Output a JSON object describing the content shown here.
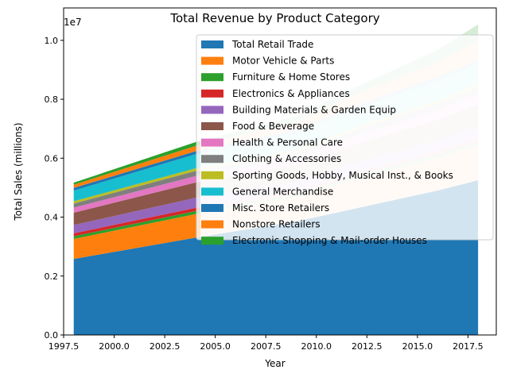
{
  "chart_data": {
    "type": "area",
    "stacked": true,
    "title": "Total Revenue by Product Category",
    "xlabel": "Year",
    "ylabel": "Total Sales (millions)",
    "y_scale_label": "1e7",
    "xlim": [
      1997.5,
      2018.9
    ],
    "ylim": [
      0,
      11100000
    ],
    "x_ticks": [
      1997.5,
      2000.0,
      2002.5,
      2005.0,
      2007.5,
      2010.0,
      2012.5,
      2015.0,
      2017.5
    ],
    "x_tick_labels": [
      "1997.5",
      "2000.0",
      "2002.5",
      "2005.0",
      "2007.5",
      "2010.0",
      "2012.5",
      "2015.0",
      "2017.5"
    ],
    "y_ticks": [
      0,
      2000000,
      4000000,
      6000000,
      8000000,
      10000000
    ],
    "y_tick_labels": [
      "0.0",
      "0.2",
      "0.4",
      "0.6",
      "0.8",
      "1.0"
    ],
    "legend_position": "upper right",
    "grid": false,
    "x": [
      1998,
      2004,
      2009,
      2012,
      2016,
      2018
    ],
    "series": [
      {
        "name": "Total Retail Trade",
        "color": "#1f77b4",
        "values": [
          2580000,
          3300000,
          3850000,
          4300000,
          4900000,
          5250000
        ]
      },
      {
        "name": "Motor Vehicle & Parts",
        "color": "#ff7f0e",
        "values": [
          680000,
          800000,
          820000,
          1000000,
          1100000,
          1200000
        ]
      },
      {
        "name": "Furniture & Home Stores",
        "color": "#2ca02c",
        "values": [
          90000,
          100000,
          100000,
          110000,
          120000,
          120000
        ]
      },
      {
        "name": "Electronics & Appliances",
        "color": "#d62728",
        "values": [
          100000,
          110000,
          100000,
          110000,
          110000,
          110000
        ]
      },
      {
        "name": "Building Materials & Garden Equip",
        "color": "#9467bd",
        "values": [
          280000,
          340000,
          320000,
          340000,
          370000,
          400000
        ]
      },
      {
        "name": "Food & Beverage",
        "color": "#8c564b",
        "values": [
          420000,
          520000,
          560000,
          620000,
          700000,
          740000
        ]
      },
      {
        "name": "Health & Personal Care",
        "color": "#e377c2",
        "values": [
          170000,
          220000,
          260000,
          290000,
          330000,
          350000
        ]
      },
      {
        "name": "Clothing & Accessories",
        "color": "#7f7f7f",
        "values": [
          140000,
          170000,
          180000,
          210000,
          240000,
          250000
        ]
      },
      {
        "name": "Sporting Goods, Hobby, Musical Inst., & Books",
        "color": "#bcbd22",
        "values": [
          80000,
          90000,
          90000,
          90000,
          90000,
          90000
        ]
      },
      {
        "name": "General Merchandise",
        "color": "#17becf",
        "values": [
          360000,
          480000,
          580000,
          620000,
          680000,
          700000
        ]
      },
      {
        "name": "Misc. Store Retailers",
        "color": "#1f77b4",
        "values": [
          90000,
          100000,
          100000,
          110000,
          120000,
          120000
        ]
      },
      {
        "name": "Nonstore Retailers",
        "color": "#ff7f0e",
        "values": [
          110000,
          180000,
          270000,
          360000,
          500000,
          650000
        ]
      },
      {
        "name": "Electronic Shopping & Mail-order Houses",
        "color": "#2ca02c",
        "values": [
          70000,
          130000,
          200000,
          270000,
          420000,
          560000
        ]
      }
    ]
  }
}
